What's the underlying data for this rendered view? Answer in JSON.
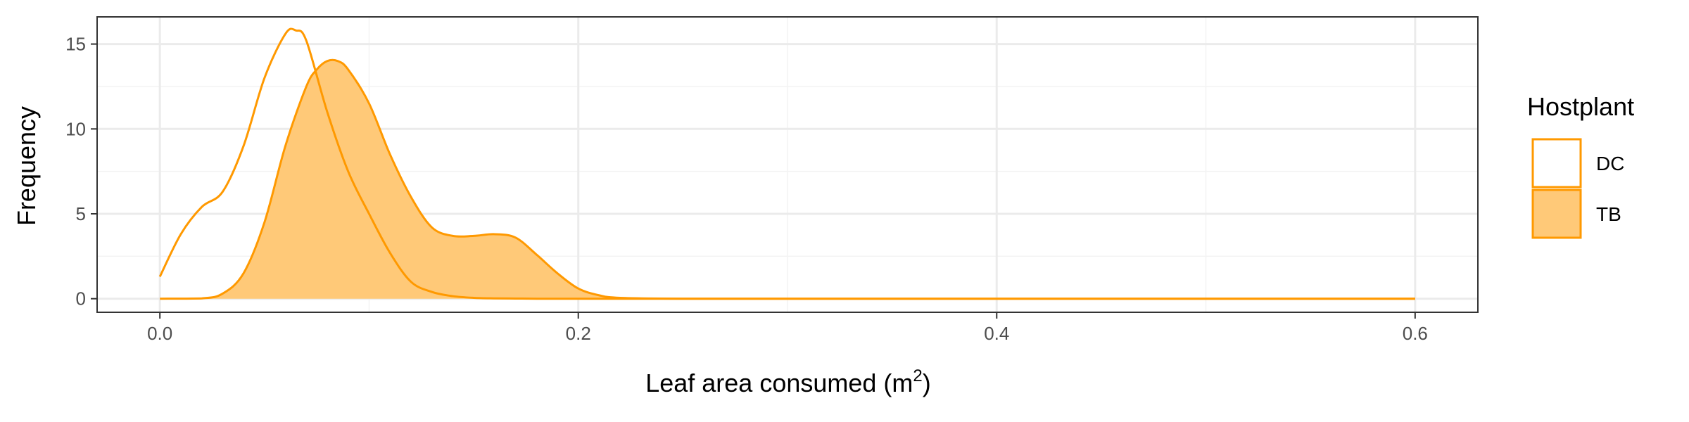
{
  "chart_data": {
    "type": "area",
    "xlabel": "Leaf area consumed (",
    "xlabel_unit": "m",
    "xlabel_sup": "2",
    "xlabel_close": ")",
    "ylabel": "Frequency",
    "xlim": [
      -0.03,
      0.63
    ],
    "ylim": [
      -0.8,
      16.6
    ],
    "x_ticks": [
      0.0,
      0.2,
      0.4,
      0.6
    ],
    "x_tick_labels": [
      "0.0",
      "0.2",
      "0.4",
      "0.6"
    ],
    "y_ticks": [
      0,
      5,
      10,
      15
    ],
    "y_tick_labels": [
      "0",
      "5",
      "10",
      "15"
    ],
    "grid": true,
    "legend": {
      "title": "Hostplant",
      "placement": "right",
      "entries": [
        {
          "label": "DC",
          "filled": false
        },
        {
          "label": "TB",
          "filled": true
        }
      ]
    },
    "colors": {
      "line": "#FF9900",
      "fill": "#FFC978",
      "grid_major": "#EBEBEB",
      "grid_minor": "#F3F3F3",
      "panel_border": "#333333"
    },
    "series": [
      {
        "name": "DC",
        "filled": false,
        "x": [
          0.0,
          0.01,
          0.02,
          0.03,
          0.04,
          0.05,
          0.06,
          0.065,
          0.07,
          0.08,
          0.09,
          0.1,
          0.11,
          0.12,
          0.13,
          0.14,
          0.15,
          0.16,
          0.17,
          0.18,
          0.2,
          0.25,
          0.3,
          0.4,
          0.5,
          0.6
        ],
        "y": [
          1.3,
          3.8,
          5.4,
          6.3,
          9.0,
          13.0,
          15.6,
          15.8,
          15.2,
          11.0,
          7.5,
          5.0,
          2.7,
          1.0,
          0.4,
          0.15,
          0.05,
          0.02,
          0.01,
          0.0,
          0.0,
          0.0,
          0.0,
          0.0,
          0.0,
          0.0
        ]
      },
      {
        "name": "TB",
        "filled": true,
        "x": [
          0.0,
          0.02,
          0.03,
          0.04,
          0.05,
          0.06,
          0.07,
          0.075,
          0.08,
          0.085,
          0.09,
          0.1,
          0.11,
          0.12,
          0.13,
          0.14,
          0.15,
          0.16,
          0.17,
          0.18,
          0.19,
          0.2,
          0.21,
          0.22,
          0.25,
          0.3,
          0.4,
          0.5,
          0.6
        ],
        "y": [
          0.0,
          0.02,
          0.3,
          1.5,
          4.5,
          9.0,
          12.5,
          13.5,
          14.0,
          14.0,
          13.5,
          11.5,
          8.5,
          6.0,
          4.2,
          3.7,
          3.7,
          3.8,
          3.6,
          2.6,
          1.5,
          0.6,
          0.2,
          0.05,
          0.0,
          0.0,
          0.0,
          0.0,
          0.0
        ]
      }
    ]
  }
}
